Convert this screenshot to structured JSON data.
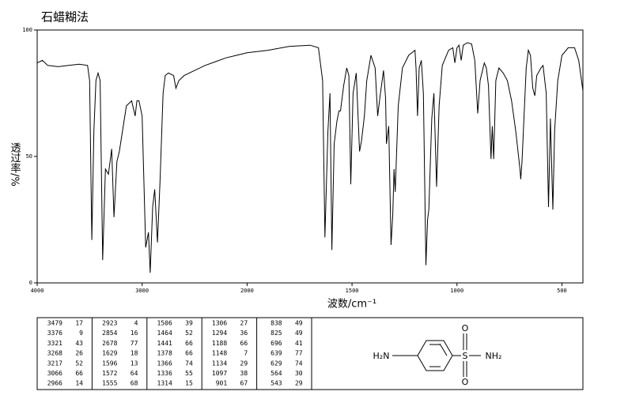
{
  "chart_data": {
    "type": "line",
    "title": "石蜡糊法",
    "xlabel": "波数/cm⁻¹",
    "ylabel": "透过率/%",
    "color": "#000000",
    "xlim": [
      4000,
      400
    ],
    "x_scale_break": 2000,
    "x_scale_factor": 2,
    "xticks": [
      4000,
      3000,
      2000,
      1500,
      1000,
      500
    ],
    "ylim": [
      0,
      100
    ],
    "yticks": [
      0,
      50,
      100
    ],
    "x": [
      4000,
      3950,
      3900,
      3800,
      3700,
      3600,
      3520,
      3500,
      3479,
      3460,
      3440,
      3420,
      3400,
      3376,
      3350,
      3321,
      3290,
      3268,
      3240,
      3217,
      3150,
      3100,
      3066,
      3050,
      3030,
      3000,
      2966,
      2940,
      2923,
      2900,
      2880,
      2854,
      2830,
      2800,
      2780,
      2750,
      2700,
      2678,
      2650,
      2600,
      2500,
      2400,
      2300,
      2200,
      2100,
      2000,
      1900,
      1800,
      1700,
      1660,
      1640,
      1629,
      1615,
      1605,
      1596,
      1585,
      1572,
      1562,
      1555,
      1540,
      1525,
      1515,
      1506,
      1495,
      1480,
      1464,
      1455,
      1441,
      1430,
      1410,
      1390,
      1378,
      1366,
      1350,
      1340,
      1336,
      1325,
      1314,
      1306,
      1300,
      1294,
      1280,
      1260,
      1230,
      1200,
      1195,
      1188,
      1180,
      1170,
      1160,
      1148,
      1140,
      1134,
      1120,
      1110,
      1097,
      1085,
      1070,
      1040,
      1020,
      1010,
      1000,
      990,
      980,
      970,
      950,
      930,
      915,
      901,
      890,
      870,
      860,
      850,
      838,
      832,
      825,
      815,
      800,
      780,
      760,
      740,
      720,
      700,
      696,
      690,
      670,
      660,
      650,
      639,
      629,
      620,
      600,
      590,
      575,
      564,
      555,
      543,
      535,
      520,
      500,
      470,
      440,
      420,
      400
    ],
    "values": [
      87,
      88,
      86,
      85.5,
      86,
      86.5,
      86,
      80,
      17,
      60,
      80,
      83,
      80,
      9,
      45,
      43,
      53,
      26,
      48,
      52,
      70,
      72,
      66,
      72,
      72,
      66,
      14,
      20,
      4,
      30,
      37,
      16,
      40,
      75,
      82,
      83,
      82,
      77,
      80,
      82,
      84,
      86,
      87.5,
      89,
      90,
      91,
      92,
      93.5,
      94,
      93,
      80,
      18,
      60,
      75,
      13,
      55,
      64,
      68,
      68,
      78,
      85,
      82,
      39,
      75,
      83,
      52,
      56,
      66,
      80,
      90,
      85,
      66,
      74,
      84,
      73,
      55,
      62,
      15,
      27,
      45,
      36,
      70,
      85,
      90,
      92,
      85,
      66,
      85,
      88,
      75,
      7,
      25,
      29,
      65,
      75,
      38,
      70,
      86,
      92,
      93,
      87,
      93,
      94,
      88,
      94,
      95,
      94.5,
      88,
      67,
      80,
      87,
      85,
      78,
      49,
      62,
      49,
      80,
      85,
      83,
      80,
      72,
      60,
      45,
      41,
      48,
      85,
      92,
      90,
      77,
      74,
      82,
      85,
      86,
      75,
      30,
      65,
      29,
      60,
      80,
      90,
      93,
      93,
      88,
      76
    ]
  },
  "peak_table": {
    "columns": [
      [
        [
          3479,
          17
        ],
        [
          3376,
          9
        ],
        [
          3321,
          43
        ],
        [
          3268,
          26
        ],
        [
          3217,
          52
        ],
        [
          3066,
          66
        ],
        [
          2966,
          14
        ]
      ],
      [
        [
          2923,
          4
        ],
        [
          2854,
          16
        ],
        [
          2678,
          77
        ],
        [
          1629,
          18
        ],
        [
          1596,
          13
        ],
        [
          1572,
          64
        ],
        [
          1555,
          68
        ]
      ],
      [
        [
          1506,
          39
        ],
        [
          1464,
          52
        ],
        [
          1441,
          66
        ],
        [
          1378,
          66
        ],
        [
          1366,
          74
        ],
        [
          1336,
          55
        ],
        [
          1314,
          15
        ]
      ],
      [
        [
          1306,
          27
        ],
        [
          1294,
          36
        ],
        [
          1188,
          66
        ],
        [
          1148,
          7
        ],
        [
          1134,
          29
        ],
        [
          1097,
          38
        ],
        [
          901,
          67
        ]
      ],
      [
        [
          838,
          49
        ],
        [
          825,
          49
        ],
        [
          696,
          41
        ],
        [
          639,
          77
        ],
        [
          629,
          74
        ],
        [
          564,
          30
        ],
        [
          543,
          29
        ]
      ]
    ]
  },
  "structure": {
    "labels": [
      "H₂N",
      "S",
      "O",
      "O",
      "NH₂"
    ]
  }
}
